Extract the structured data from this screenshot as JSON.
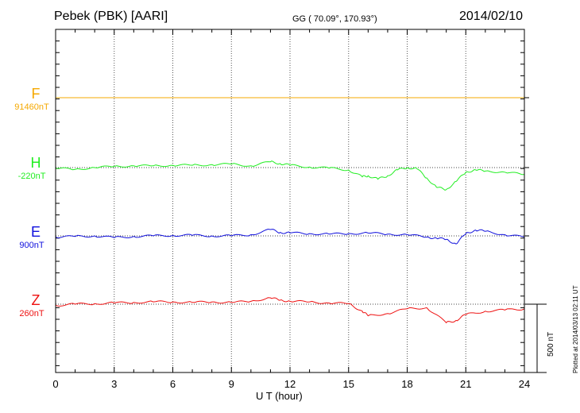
{
  "header": {
    "station": "Pebek (PBK)  [AARI]",
    "coords": "GG ( 70.09°, 170.93°)",
    "date": "2014/02/10"
  },
  "side_note": "Plotted at 2014/03/13 02:11 UT",
  "scale_label": "500 nT",
  "chart_data": {
    "type": "line",
    "xlabel": "U T (hour)",
    "xlim": [
      0,
      24
    ],
    "x_ticks": [
      0,
      3,
      6,
      9,
      12,
      15,
      18,
      21,
      24
    ],
    "grid": "dotted vertical every 3 hours",
    "scale_bar_nT": 500,
    "series": [
      {
        "name": "F",
        "baseline_label": "91460nT",
        "color": "#f5a800",
        "x": [
          0,
          3,
          6,
          9,
          12,
          15,
          18,
          21,
          24
        ],
        "dev_nT": [
          0,
          0,
          0,
          0,
          0,
          0,
          0,
          0,
          0
        ]
      },
      {
        "name": "H",
        "baseline_label": "-220nT",
        "color": "#22ee22",
        "x": [
          0,
          1,
          2,
          3,
          4,
          5,
          6,
          7,
          8,
          9,
          10,
          11,
          11.5,
          12,
          13,
          14,
          15,
          15.7,
          16,
          16.5,
          17,
          17.5,
          18,
          18.5,
          19,
          19.5,
          20,
          20.5,
          21,
          21.5,
          22,
          23,
          24
        ],
        "dev_nT": [
          -5,
          -15,
          0,
          10,
          15,
          15,
          20,
          20,
          25,
          30,
          15,
          50,
          35,
          20,
          5,
          -5,
          -20,
          -80,
          -70,
          -100,
          -70,
          -20,
          0,
          -10,
          -90,
          -170,
          -190,
          -120,
          -40,
          -20,
          -30,
          -40,
          -60
        ]
      },
      {
        "name": "E",
        "baseline_label": "900nT",
        "color": "#1010dd",
        "x": [
          0,
          1,
          2,
          3,
          4,
          5,
          6,
          7,
          8,
          9,
          10,
          11,
          11.5,
          12,
          13,
          14,
          15,
          16,
          17,
          18,
          19,
          19.5,
          20,
          20.5,
          21,
          21.5,
          22,
          23,
          24
        ],
        "dev_nT": [
          -10,
          -5,
          0,
          -15,
          -5,
          0,
          5,
          5,
          0,
          0,
          10,
          55,
          30,
          25,
          20,
          15,
          20,
          25,
          15,
          10,
          -10,
          -20,
          -30,
          -70,
          20,
          50,
          40,
          10,
          -10
        ]
      },
      {
        "name": "Z",
        "baseline_label": "260nT",
        "color": "#ee1111",
        "x": [
          0,
          1,
          2,
          3,
          4,
          5,
          6,
          7,
          8,
          9,
          10,
          11,
          11.5,
          12,
          13,
          14,
          15,
          15.7,
          16,
          17,
          18,
          19,
          20,
          20.5,
          21,
          22,
          23,
          24
        ],
        "dev_nT": [
          -10,
          0,
          5,
          10,
          15,
          20,
          20,
          15,
          20,
          15,
          25,
          55,
          35,
          25,
          20,
          10,
          5,
          -60,
          -100,
          -80,
          -40,
          -30,
          -160,
          -140,
          -90,
          -60,
          -50,
          -40
        ]
      }
    ]
  }
}
